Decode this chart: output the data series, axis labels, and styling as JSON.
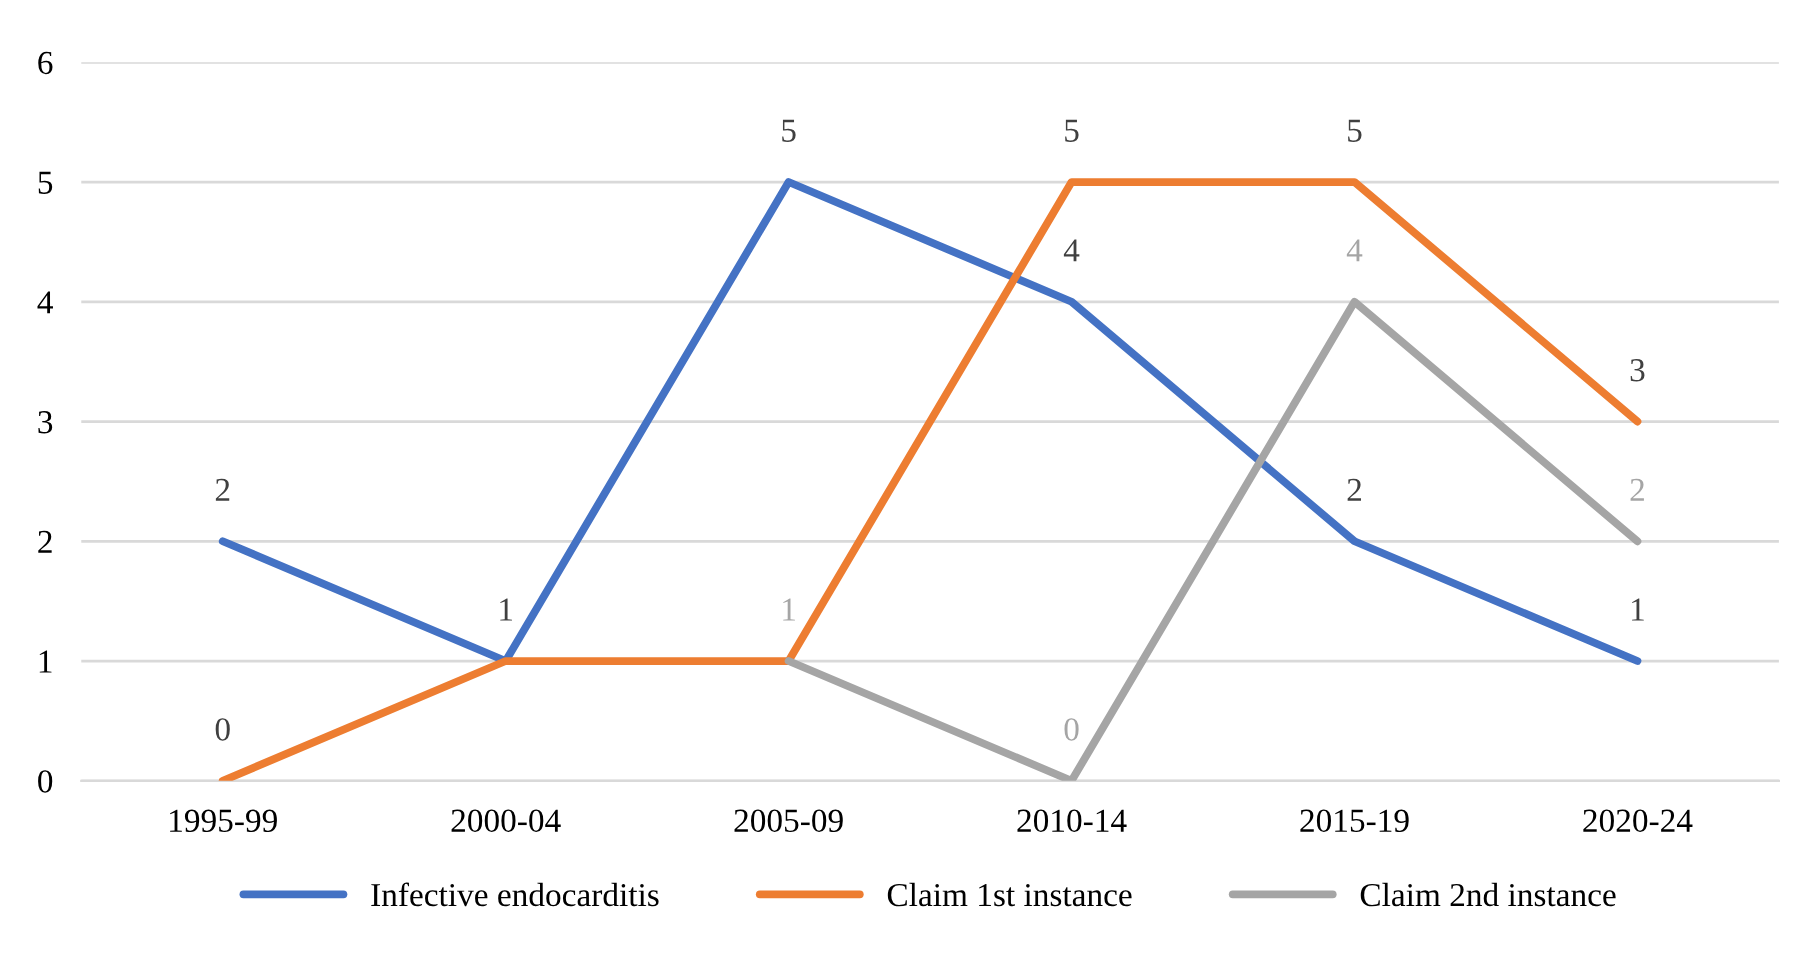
{
  "chart_data": {
    "type": "line",
    "categories": [
      "1995-99",
      "2000-04",
      "2005-09",
      "2010-14",
      "2015-19",
      "2020-24"
    ],
    "series": [
      {
        "name": "Infective endocarditis",
        "color": "#4472c4",
        "values": [
          2,
          1,
          5,
          4,
          2,
          1
        ]
      },
      {
        "name": "Claim 1st instance",
        "color": "#ed7d31",
        "values": [
          0,
          1,
          1,
          5,
          5,
          3
        ],
        "value_labels": [
          "0",
          null,
          null,
          "5",
          "5",
          "3"
        ]
      },
      {
        "name": "Claim 2nd instance",
        "color": "#a5a5a5",
        "values": [
          null,
          null,
          1,
          0,
          4,
          2
        ]
      }
    ],
    "ylim": [
      0,
      6
    ],
    "yticks": [
      0,
      1,
      2,
      3,
      4,
      5,
      6
    ],
    "grid": "y",
    "legend": "bottom",
    "data_labels": true,
    "marker": "none",
    "line_style": "solid"
  }
}
